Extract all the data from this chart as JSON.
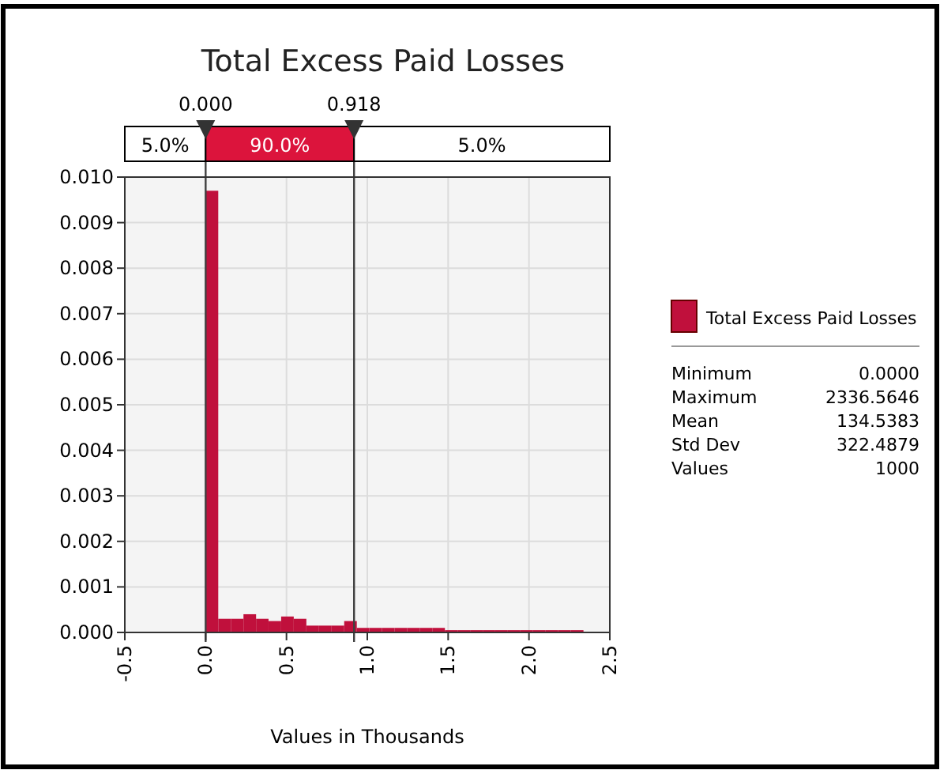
{
  "chart_data": {
    "type": "histogram",
    "title": "Total Excess Paid Losses",
    "xlabel": "Values in Thousands",
    "bins": [
      0,
      0.078,
      0.156,
      0.234,
      0.312,
      0.389,
      0.467,
      0.545,
      0.623,
      0.701,
      0.779,
      0.857,
      0.935,
      1.012,
      1.09,
      1.168,
      1.246,
      1.324,
      1.402,
      1.48,
      1.558,
      1.636,
      1.714,
      1.791,
      1.869,
      1.947,
      2.025,
      2.103,
      2.181,
      2.259,
      2.337
    ],
    "series": [
      {
        "name": "Total Excess Paid Losses",
        "color": "#c0103c",
        "values": [
          0.0097,
          0.0003,
          0.0003,
          0.0004,
          0.0003,
          0.00025,
          0.00035,
          0.0003,
          0.00015,
          0.00015,
          0.00015,
          0.00025,
          0.0001,
          0.0001,
          0.0001,
          0.0001,
          0.0001,
          0.0001,
          0.0001,
          5e-05,
          5e-05,
          5e-05,
          5e-05,
          5e-05,
          5e-05,
          5e-05,
          5e-05,
          5e-05,
          5e-05,
          5e-05
        ]
      }
    ],
    "xlim": [
      -0.5,
      2.5
    ],
    "xticks": [
      -0.5,
      {
        "value": 0,
        "label": "0.0"
      },
      0.5,
      {
        "value": 1,
        "label": "1.0"
      },
      1.5,
      {
        "value": 2,
        "label": "2.0"
      },
      2.5
    ],
    "ylim": [
      0,
      0.01
    ],
    "yticks": [
      {
        "value": 0,
        "label": "0.000"
      },
      0.001,
      0.002,
      0.003,
      0.004,
      0.005,
      0.006,
      0.007,
      0.008,
      0.009,
      {
        "value": 0.01,
        "label": "0.010"
      }
    ],
    "grid": true,
    "legend": "right",
    "ref_lines": [
      {
        "axis": "x",
        "value": 0,
        "label": "0.000",
        "color": "#404040"
      },
      {
        "axis": "x",
        "value": 0.918,
        "label": "0.918",
        "color": "#404040"
      }
    ],
    "annotations": [
      "5.0%",
      "90.0%",
      "5.0%",
      "Minimum",
      "0.0000",
      "Maximum",
      "2336.5646",
      "Mean",
      "134.5383",
      "Std Dev",
      "322.4879",
      "Values",
      "1000"
    ]
  }
}
